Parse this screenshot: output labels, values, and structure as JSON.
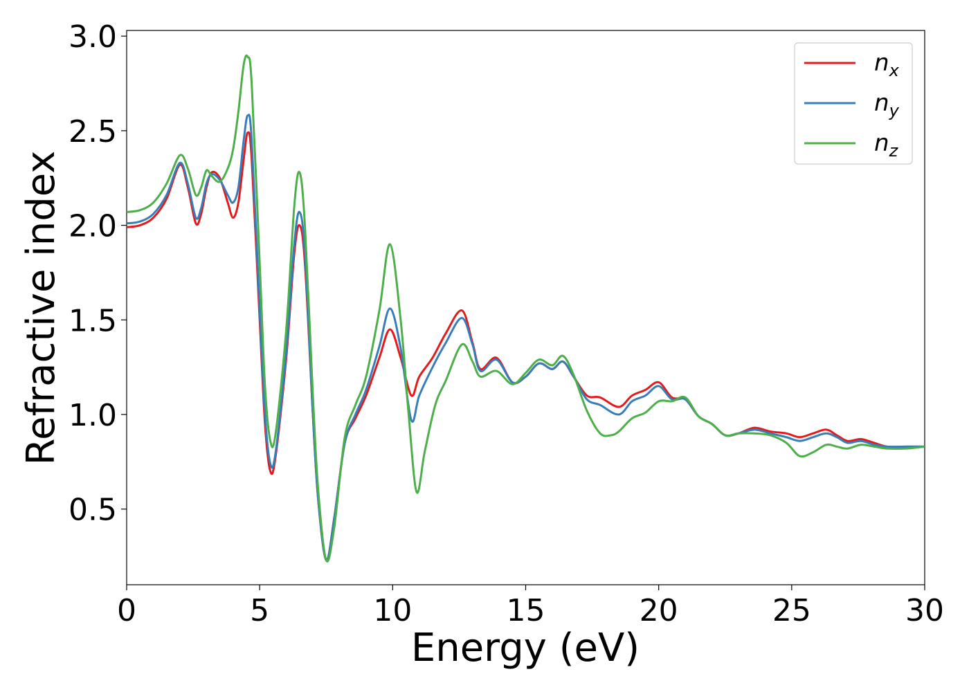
{
  "chart_data": {
    "type": "line",
    "title": "",
    "xlabel": "Energy (eV)",
    "ylabel": "Refractive index",
    "xlim": [
      0,
      30
    ],
    "ylim": [
      0.1,
      3.03
    ],
    "xticks": [
      "0",
      "5",
      "10",
      "15",
      "20",
      "25",
      "30"
    ],
    "yticks": [
      "0.5",
      "1.0",
      "1.5",
      "2.0",
      "2.5",
      "3.0"
    ],
    "grid": false,
    "legend_position": "top-right",
    "series": [
      {
        "name": "nx",
        "symbol": "n",
        "subscript": "x",
        "color": "#e41a1c",
        "points": [
          [
            0,
            1.99
          ],
          [
            0.5,
            2.0
          ],
          [
            1.0,
            2.04
          ],
          [
            1.5,
            2.14
          ],
          [
            2.0,
            2.32
          ],
          [
            2.3,
            2.2
          ],
          [
            2.6,
            2.01
          ],
          [
            2.8,
            2.06
          ],
          [
            3.0,
            2.2
          ],
          [
            3.2,
            2.28
          ],
          [
            3.5,
            2.25
          ],
          [
            3.8,
            2.12
          ],
          [
            4.0,
            2.04
          ],
          [
            4.2,
            2.12
          ],
          [
            4.4,
            2.35
          ],
          [
            4.55,
            2.49
          ],
          [
            4.7,
            2.35
          ],
          [
            5.0,
            1.5
          ],
          [
            5.2,
            0.95
          ],
          [
            5.4,
            0.7
          ],
          [
            5.6,
            0.78
          ],
          [
            6.0,
            1.3
          ],
          [
            6.3,
            1.85
          ],
          [
            6.5,
            2.0
          ],
          [
            6.7,
            1.8
          ],
          [
            7.0,
            1.0
          ],
          [
            7.2,
            0.55
          ],
          [
            7.5,
            0.23
          ],
          [
            7.8,
            0.45
          ],
          [
            8.2,
            0.85
          ],
          [
            8.6,
            0.98
          ],
          [
            9.0,
            1.1
          ],
          [
            9.5,
            1.3
          ],
          [
            9.9,
            1.45
          ],
          [
            10.3,
            1.3
          ],
          [
            10.7,
            1.1
          ],
          [
            11.0,
            1.2
          ],
          [
            11.5,
            1.3
          ],
          [
            12.0,
            1.43
          ],
          [
            12.6,
            1.55
          ],
          [
            13.0,
            1.38
          ],
          [
            13.3,
            1.24
          ],
          [
            13.9,
            1.3
          ],
          [
            14.5,
            1.17
          ],
          [
            15.0,
            1.2
          ],
          [
            15.5,
            1.27
          ],
          [
            16.0,
            1.24
          ],
          [
            16.4,
            1.28
          ],
          [
            16.8,
            1.2
          ],
          [
            17.3,
            1.1
          ],
          [
            17.8,
            1.09
          ],
          [
            18.5,
            1.04
          ],
          [
            19.0,
            1.1
          ],
          [
            19.5,
            1.13
          ],
          [
            20.0,
            1.17
          ],
          [
            20.5,
            1.09
          ],
          [
            21.0,
            1.08
          ],
          [
            21.5,
            0.99
          ],
          [
            22.0,
            0.95
          ],
          [
            22.5,
            0.89
          ],
          [
            23.0,
            0.9
          ],
          [
            23.6,
            0.93
          ],
          [
            24.2,
            0.91
          ],
          [
            24.8,
            0.9
          ],
          [
            25.3,
            0.88
          ],
          [
            25.8,
            0.9
          ],
          [
            26.3,
            0.92
          ],
          [
            26.7,
            0.89
          ],
          [
            27.1,
            0.86
          ],
          [
            27.6,
            0.87
          ],
          [
            28.1,
            0.85
          ],
          [
            28.6,
            0.83
          ],
          [
            29.3,
            0.83
          ],
          [
            30.0,
            0.83
          ]
        ]
      },
      {
        "name": "ny",
        "symbol": "n",
        "subscript": "y",
        "color": "#377eb8",
        "points": [
          [
            0,
            2.01
          ],
          [
            0.5,
            2.02
          ],
          [
            1.0,
            2.06
          ],
          [
            1.5,
            2.16
          ],
          [
            2.0,
            2.33
          ],
          [
            2.3,
            2.22
          ],
          [
            2.6,
            2.04
          ],
          [
            2.8,
            2.09
          ],
          [
            3.0,
            2.22
          ],
          [
            3.2,
            2.27
          ],
          [
            3.5,
            2.24
          ],
          [
            3.8,
            2.16
          ],
          [
            4.0,
            2.12
          ],
          [
            4.2,
            2.2
          ],
          [
            4.4,
            2.45
          ],
          [
            4.55,
            2.58
          ],
          [
            4.7,
            2.45
          ],
          [
            5.0,
            1.55
          ],
          [
            5.2,
            1.0
          ],
          [
            5.4,
            0.74
          ],
          [
            5.6,
            0.8
          ],
          [
            6.0,
            1.33
          ],
          [
            6.3,
            1.9
          ],
          [
            6.5,
            2.07
          ],
          [
            6.7,
            1.85
          ],
          [
            7.0,
            1.0
          ],
          [
            7.2,
            0.55
          ],
          [
            7.5,
            0.23
          ],
          [
            7.8,
            0.45
          ],
          [
            8.2,
            0.85
          ],
          [
            8.6,
            1.0
          ],
          [
            9.0,
            1.13
          ],
          [
            9.5,
            1.36
          ],
          [
            9.9,
            1.56
          ],
          [
            10.3,
            1.35
          ],
          [
            10.7,
            0.97
          ],
          [
            11.0,
            1.1
          ],
          [
            11.5,
            1.25
          ],
          [
            12.0,
            1.38
          ],
          [
            12.6,
            1.51
          ],
          [
            13.0,
            1.37
          ],
          [
            13.3,
            1.23
          ],
          [
            13.9,
            1.29
          ],
          [
            14.5,
            1.17
          ],
          [
            15.0,
            1.2
          ],
          [
            15.5,
            1.27
          ],
          [
            16.0,
            1.24
          ],
          [
            16.4,
            1.28
          ],
          [
            16.8,
            1.2
          ],
          [
            17.3,
            1.08
          ],
          [
            17.8,
            1.05
          ],
          [
            18.5,
            1.0
          ],
          [
            19.0,
            1.07
          ],
          [
            19.5,
            1.1
          ],
          [
            20.0,
            1.15
          ],
          [
            20.5,
            1.08
          ],
          [
            21.0,
            1.08
          ],
          [
            21.5,
            0.99
          ],
          [
            22.0,
            0.95
          ],
          [
            22.5,
            0.89
          ],
          [
            23.0,
            0.9
          ],
          [
            23.6,
            0.92
          ],
          [
            24.2,
            0.9
          ],
          [
            24.8,
            0.88
          ],
          [
            25.3,
            0.86
          ],
          [
            25.8,
            0.88
          ],
          [
            26.3,
            0.9
          ],
          [
            26.7,
            0.88
          ],
          [
            27.1,
            0.85
          ],
          [
            27.6,
            0.86
          ],
          [
            28.1,
            0.84
          ],
          [
            28.6,
            0.83
          ],
          [
            29.3,
            0.83
          ],
          [
            30.0,
            0.83
          ]
        ]
      },
      {
        "name": "nz",
        "symbol": "n",
        "subscript": "z",
        "color": "#4daf4a",
        "points": [
          [
            0,
            2.07
          ],
          [
            0.5,
            2.08
          ],
          [
            1.0,
            2.12
          ],
          [
            1.5,
            2.22
          ],
          [
            2.0,
            2.37
          ],
          [
            2.3,
            2.3
          ],
          [
            2.6,
            2.16
          ],
          [
            2.8,
            2.2
          ],
          [
            3.0,
            2.29
          ],
          [
            3.2,
            2.26
          ],
          [
            3.5,
            2.23
          ],
          [
            3.8,
            2.3
          ],
          [
            4.0,
            2.4
          ],
          [
            4.2,
            2.6
          ],
          [
            4.4,
            2.85
          ],
          [
            4.55,
            2.89
          ],
          [
            4.7,
            2.75
          ],
          [
            5.0,
            1.8
          ],
          [
            5.2,
            1.15
          ],
          [
            5.4,
            0.86
          ],
          [
            5.6,
            0.9
          ],
          [
            6.0,
            1.45
          ],
          [
            6.3,
            2.1
          ],
          [
            6.5,
            2.28
          ],
          [
            6.7,
            2.0
          ],
          [
            7.0,
            1.1
          ],
          [
            7.2,
            0.6
          ],
          [
            7.5,
            0.23
          ],
          [
            7.8,
            0.4
          ],
          [
            8.2,
            0.88
          ],
          [
            8.6,
            1.05
          ],
          [
            9.0,
            1.2
          ],
          [
            9.5,
            1.55
          ],
          [
            9.9,
            1.9
          ],
          [
            10.3,
            1.5
          ],
          [
            10.6,
            1.0
          ],
          [
            10.9,
            0.59
          ],
          [
            11.2,
            0.8
          ],
          [
            11.6,
            1.05
          ],
          [
            12.0,
            1.18
          ],
          [
            12.6,
            1.37
          ],
          [
            13.0,
            1.28
          ],
          [
            13.3,
            1.2
          ],
          [
            13.9,
            1.23
          ],
          [
            14.5,
            1.16
          ],
          [
            15.0,
            1.22
          ],
          [
            15.5,
            1.29
          ],
          [
            16.0,
            1.26
          ],
          [
            16.4,
            1.31
          ],
          [
            16.8,
            1.21
          ],
          [
            17.3,
            1.02
          ],
          [
            17.8,
            0.9
          ],
          [
            18.2,
            0.89
          ],
          [
            18.5,
            0.91
          ],
          [
            19.0,
            0.98
          ],
          [
            19.5,
            1.01
          ],
          [
            20.0,
            1.07
          ],
          [
            20.5,
            1.07
          ],
          [
            21.0,
            1.09
          ],
          [
            21.5,
            0.99
          ],
          [
            22.0,
            0.95
          ],
          [
            22.5,
            0.89
          ],
          [
            23.0,
            0.9
          ],
          [
            23.6,
            0.9
          ],
          [
            24.2,
            0.89
          ],
          [
            24.8,
            0.85
          ],
          [
            25.3,
            0.78
          ],
          [
            25.8,
            0.8
          ],
          [
            26.3,
            0.84
          ],
          [
            26.7,
            0.83
          ],
          [
            27.1,
            0.82
          ],
          [
            27.6,
            0.84
          ],
          [
            28.1,
            0.83
          ],
          [
            28.6,
            0.82
          ],
          [
            29.3,
            0.82
          ],
          [
            30.0,
            0.83
          ]
        ]
      }
    ]
  }
}
